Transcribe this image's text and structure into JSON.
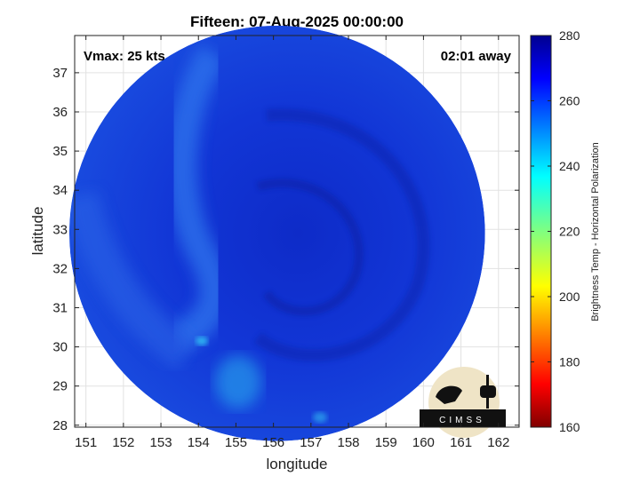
{
  "chart_data": {
    "type": "heatmap",
    "title": "Fifteen: 07-Aug-2025 00:00:00",
    "xlabel": "longitude",
    "ylabel": "latitude",
    "xlim": [
      150.7,
      162.55
    ],
    "ylim": [
      27.95,
      37.95
    ],
    "xticks": [
      151,
      152,
      153,
      154,
      155,
      156,
      157,
      158,
      159,
      160,
      161,
      162
    ],
    "yticks": [
      28,
      29,
      30,
      31,
      32,
      33,
      34,
      35,
      36,
      37
    ],
    "grid": true,
    "annotations": {
      "top_left": "Vmax: 25 kts",
      "top_right": "02:01 away"
    },
    "colorbar": {
      "label": "Brightness Temp - Horizontal Polarization",
      "range": [
        160,
        280
      ],
      "ticks": [
        160,
        180,
        200,
        220,
        240,
        260,
        280
      ],
      "colormap": [
        "#800000",
        "#ff0000",
        "#ff8000",
        "#ffff00",
        "#80ff80",
        "#00ffff",
        "#0080ff",
        "#0000ff",
        "#00008f"
      ]
    },
    "swath": {
      "shape": "circle",
      "center": [
        156.1,
        32.9
      ],
      "radius_lon": 5.88,
      "radius_lat": 4.98,
      "typical_value": 262,
      "min_value": 236
    },
    "logo_text": "CIMSS"
  }
}
